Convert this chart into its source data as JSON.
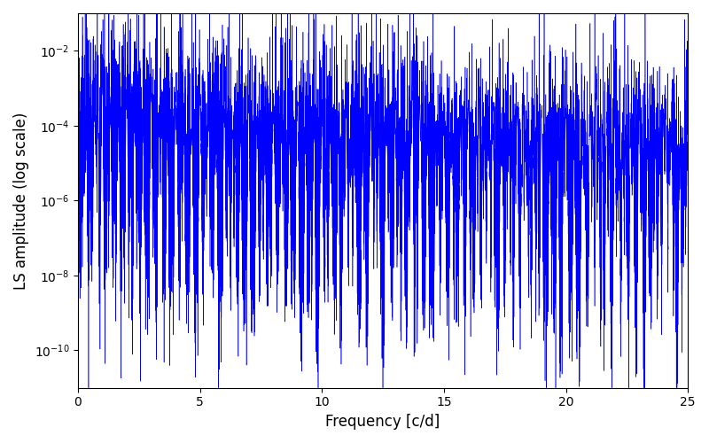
{
  "title": "",
  "xlabel": "Frequency [c/d]",
  "ylabel": "LS amplitude (log scale)",
  "xlim": [
    0,
    25
  ],
  "ylim": [
    1e-11,
    0.1
  ],
  "yticks": [
    1e-10,
    1e-08,
    1e-06,
    0.0001,
    0.01
  ],
  "line_color": "#0000ff",
  "line_width": 0.4,
  "background_color": "#ffffff",
  "figsize": [
    8.0,
    5.0
  ],
  "dpi": 100,
  "freq_max": 25.0,
  "n_points": 15000,
  "seed": 42,
  "yscale": "log"
}
